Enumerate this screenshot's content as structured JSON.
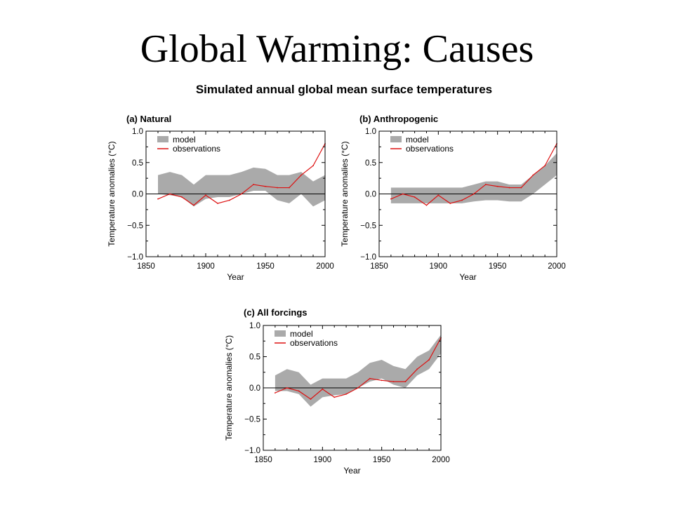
{
  "slide": {
    "title": "Global Warming: Causes",
    "figure_title": "Simulated annual global mean surface temperatures"
  },
  "colors": {
    "model": "#aaaaaa",
    "observations": "#dd1111",
    "axis": "#000000",
    "zero_line": "#000000"
  },
  "chart_data": [
    {
      "type": "line",
      "title": "(a) Natural",
      "xlabel": "Year",
      "ylabel": "Temperature anomalies (°C)",
      "xlim": [
        1850,
        2000
      ],
      "ylim": [
        -1.0,
        1.0
      ],
      "x_ticks": [
        "1850",
        "1900",
        "1950",
        "2000"
      ],
      "y_ticks": [
        "1.0",
        "0.5",
        "0.0",
        "−0.5",
        "−1.0"
      ],
      "legend": {
        "position": "top-left",
        "entries": [
          "model",
          "observations"
        ]
      },
      "zero_line": true,
      "series": [
        {
          "name": "model",
          "kind": "band",
          "x": [
            1860,
            1870,
            1880,
            1890,
            1900,
            1910,
            1920,
            1930,
            1940,
            1950,
            1960,
            1970,
            1980,
            1990,
            2000
          ],
          "low": [
            0.0,
            -0.02,
            -0.05,
            -0.2,
            -0.08,
            -0.05,
            -0.05,
            0.0,
            0.05,
            0.05,
            -0.1,
            -0.15,
            0.0,
            -0.2,
            -0.1
          ],
          "high": [
            0.3,
            0.35,
            0.3,
            0.15,
            0.3,
            0.3,
            0.3,
            0.35,
            0.42,
            0.4,
            0.3,
            0.3,
            0.35,
            0.2,
            0.3
          ]
        },
        {
          "name": "observations",
          "kind": "line",
          "x": [
            1860,
            1870,
            1880,
            1890,
            1900,
            1910,
            1920,
            1930,
            1940,
            1950,
            1960,
            1970,
            1980,
            1990,
            2000
          ],
          "y": [
            -0.08,
            0.0,
            -0.05,
            -0.18,
            -0.02,
            -0.15,
            -0.1,
            0.0,
            0.15,
            0.12,
            0.1,
            0.1,
            0.3,
            0.45,
            0.8
          ]
        }
      ]
    },
    {
      "type": "line",
      "title": "(b) Anthropogenic",
      "xlabel": "Year",
      "ylabel": "Temperature anomalies (°C)",
      "xlim": [
        1850,
        2000
      ],
      "ylim": [
        -1.0,
        1.0
      ],
      "x_ticks": [
        "1850",
        "1900",
        "1950",
        "2000"
      ],
      "y_ticks": [
        "1.0",
        "0.5",
        "0.0",
        "−0.5",
        "−1.0"
      ],
      "legend": {
        "position": "top-left",
        "entries": [
          "model",
          "observations"
        ]
      },
      "zero_line": true,
      "series": [
        {
          "name": "model",
          "kind": "band",
          "x": [
            1860,
            1870,
            1880,
            1890,
            1900,
            1910,
            1920,
            1930,
            1940,
            1950,
            1960,
            1970,
            1980,
            1990,
            2000
          ],
          "low": [
            -0.15,
            -0.15,
            -0.15,
            -0.15,
            -0.15,
            -0.15,
            -0.15,
            -0.12,
            -0.1,
            -0.1,
            -0.12,
            -0.12,
            0.0,
            0.15,
            0.3
          ],
          "high": [
            0.1,
            0.1,
            0.1,
            0.1,
            0.1,
            0.1,
            0.1,
            0.15,
            0.2,
            0.2,
            0.15,
            0.15,
            0.3,
            0.45,
            0.65
          ]
        },
        {
          "name": "observations",
          "kind": "line",
          "x": [
            1860,
            1870,
            1880,
            1890,
            1900,
            1910,
            1920,
            1930,
            1940,
            1950,
            1960,
            1970,
            1980,
            1990,
            2000
          ],
          "y": [
            -0.08,
            0.0,
            -0.05,
            -0.18,
            -0.02,
            -0.15,
            -0.1,
            0.0,
            0.15,
            0.12,
            0.1,
            0.1,
            0.3,
            0.45,
            0.8
          ]
        }
      ]
    },
    {
      "type": "line",
      "title": "(c) All forcings",
      "xlabel": "Year",
      "ylabel": "Temperature anomalies (°C)",
      "xlim": [
        1850,
        2000
      ],
      "ylim": [
        -1.0,
        1.0
      ],
      "x_ticks": [
        "1850",
        "1900",
        "1950",
        "2000"
      ],
      "y_ticks": [
        "1.0",
        "0.5",
        "0.0",
        "−0.5",
        "−1.0"
      ],
      "legend": {
        "position": "top-left",
        "entries": [
          "model",
          "observations"
        ]
      },
      "zero_line": true,
      "series": [
        {
          "name": "model",
          "kind": "band",
          "x": [
            1860,
            1870,
            1880,
            1890,
            1900,
            1910,
            1920,
            1930,
            1940,
            1950,
            1960,
            1970,
            1980,
            1990,
            2000
          ],
          "low": [
            -0.05,
            -0.05,
            -0.1,
            -0.3,
            -0.15,
            -0.12,
            -0.1,
            0.0,
            0.1,
            0.15,
            0.05,
            0.0,
            0.2,
            0.3,
            0.55
          ],
          "high": [
            0.2,
            0.3,
            0.25,
            0.05,
            0.15,
            0.15,
            0.15,
            0.25,
            0.4,
            0.45,
            0.35,
            0.3,
            0.5,
            0.6,
            0.85
          ]
        },
        {
          "name": "observations",
          "kind": "line",
          "x": [
            1860,
            1870,
            1880,
            1890,
            1900,
            1910,
            1920,
            1930,
            1940,
            1950,
            1960,
            1970,
            1980,
            1990,
            2000
          ],
          "y": [
            -0.08,
            0.0,
            -0.05,
            -0.18,
            -0.02,
            -0.15,
            -0.1,
            0.0,
            0.15,
            0.12,
            0.1,
            0.1,
            0.3,
            0.45,
            0.8
          ]
        }
      ]
    }
  ]
}
